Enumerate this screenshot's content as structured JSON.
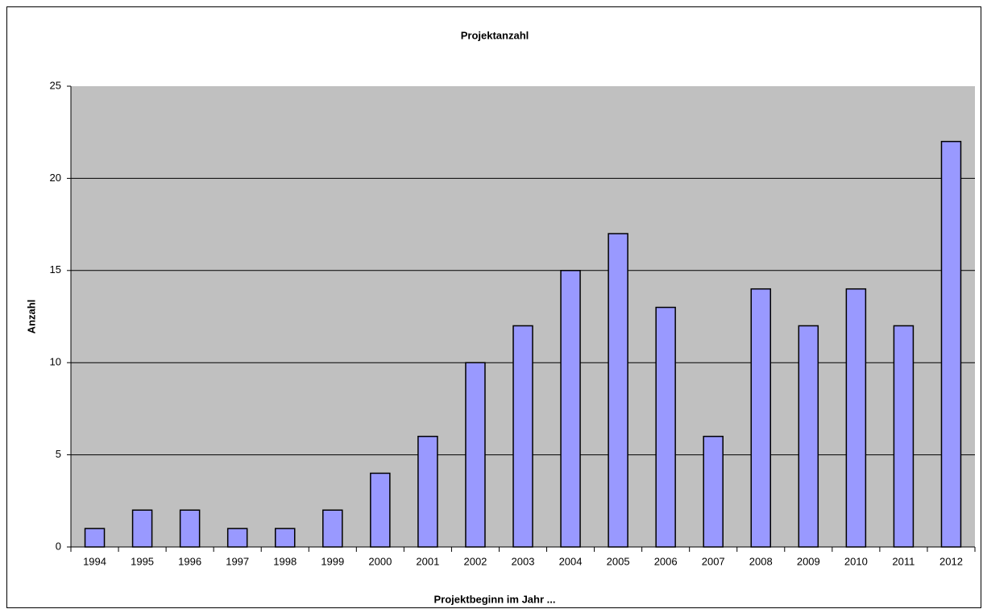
{
  "chart_data": {
    "type": "bar",
    "title": "Projektanzahl",
    "x_label": "Projektbeginn im Jahr ...",
    "y_label": "Anzahl",
    "categories": [
      "1994",
      "1995",
      "1996",
      "1997",
      "1998",
      "1999",
      "2000",
      "2001",
      "2002",
      "2003",
      "2004",
      "2005",
      "2006",
      "2007",
      "2008",
      "2009",
      "2010",
      "2011",
      "2012"
    ],
    "values": [
      1,
      2,
      2,
      1,
      1,
      2,
      4,
      6,
      10,
      12,
      15,
      17,
      13,
      6,
      14,
      12,
      14,
      12,
      22
    ],
    "color": "#9999ff",
    "ylim": [
      0,
      25
    ],
    "yticks": [
      0,
      5,
      10,
      15,
      20,
      25
    ],
    "grid": true
  }
}
